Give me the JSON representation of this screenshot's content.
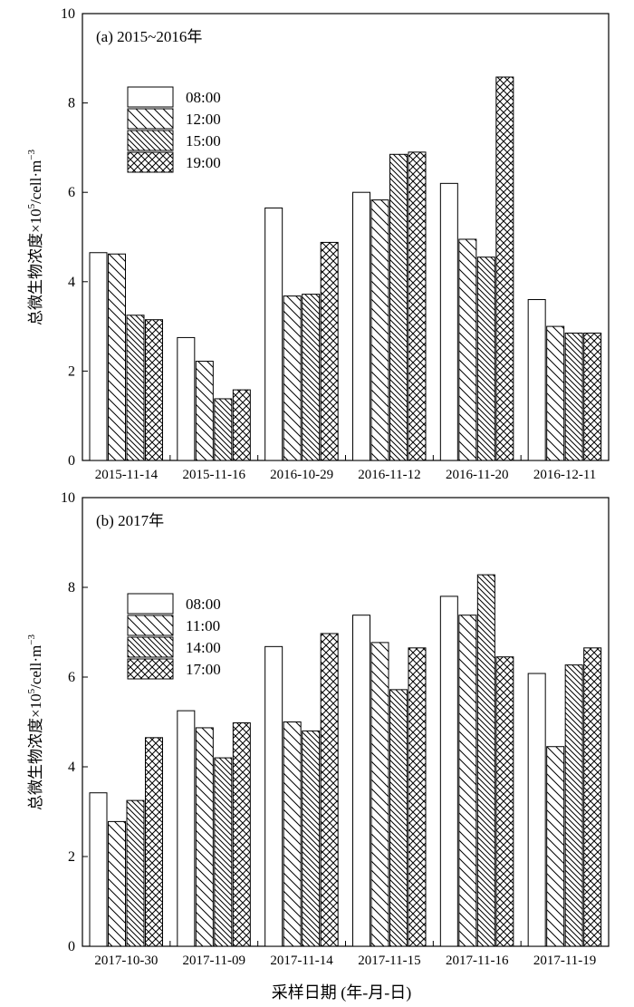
{
  "figure": {
    "xlabel": "采样日期 (年-月-日)",
    "ylabel_prefix": "总微生物浓度×10",
    "ylabel_exp1": "5",
    "ylabel_mid": "/cell·m",
    "ylabel_exp2": "−3"
  },
  "chart_data": [
    {
      "type": "bar",
      "panel_label": "(a) 2015~2016年",
      "ylim": [
        0,
        10
      ],
      "yticks": [
        0,
        2,
        4,
        6,
        8,
        10
      ],
      "categories": [
        "2015-11-14",
        "2015-11-16",
        "2016-10-29",
        "2016-11-12",
        "2016-11-20",
        "2016-12-11"
      ],
      "legend_position": "upper-left",
      "series": [
        {
          "name": "08:00",
          "pattern": "blank",
          "values": [
            4.65,
            2.75,
            5.65,
            6.0,
            6.2,
            3.6
          ]
        },
        {
          "name": "12:00",
          "pattern": "hatch-back",
          "values": [
            4.62,
            2.22,
            3.68,
            5.83,
            4.95,
            3.0
          ]
        },
        {
          "name": "15:00",
          "pattern": "hatch-back-dense",
          "values": [
            3.25,
            1.38,
            3.72,
            6.85,
            4.55,
            2.85
          ]
        },
        {
          "name": "19:00",
          "pattern": "crosshatch",
          "values": [
            3.15,
            1.58,
            4.88,
            6.9,
            8.58,
            2.85
          ]
        }
      ]
    },
    {
      "type": "bar",
      "panel_label": "(b) 2017年",
      "ylim": [
        0,
        10
      ],
      "yticks": [
        0,
        2,
        4,
        6,
        8,
        10
      ],
      "categories": [
        "2017-10-30",
        "2017-11-09",
        "2017-11-14",
        "2017-11-15",
        "2017-11-16",
        "2017-11-19"
      ],
      "legend_position": "upper-left",
      "series": [
        {
          "name": "08:00",
          "pattern": "blank",
          "values": [
            3.42,
            5.25,
            6.68,
            7.38,
            7.8,
            6.08
          ]
        },
        {
          "name": "11:00",
          "pattern": "hatch-back",
          "values": [
            2.78,
            4.87,
            5.0,
            6.77,
            7.38,
            4.45
          ]
        },
        {
          "name": "14:00",
          "pattern": "hatch-back-dense",
          "values": [
            3.25,
            4.2,
            4.8,
            5.72,
            8.28,
            6.27
          ]
        },
        {
          "name": "17:00",
          "pattern": "crosshatch",
          "values": [
            4.65,
            4.98,
            6.97,
            6.65,
            6.45,
            6.65
          ]
        }
      ]
    }
  ]
}
